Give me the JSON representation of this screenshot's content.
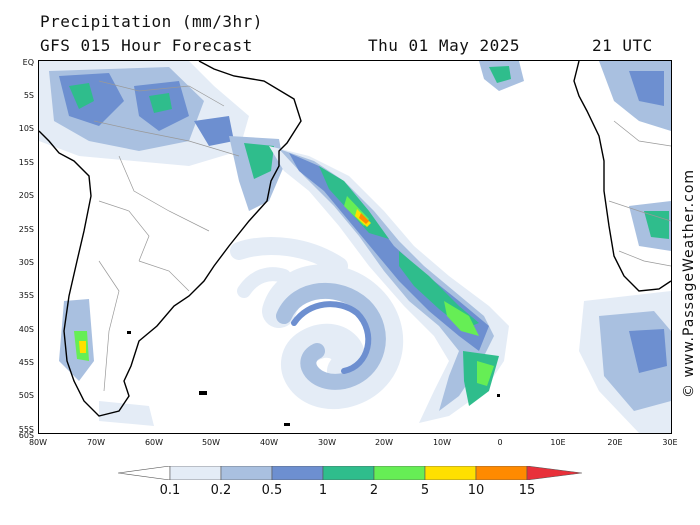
{
  "header": {
    "title": "Precipitation (mm/3hr)",
    "subtitle": "GFS 015 Hour Forecast",
    "date": "Thu 01 May 2025",
    "time": "21 UTC"
  },
  "credit": "© www.PassageWeather.com",
  "latitude_labels": [
    "EQ",
    "5S",
    "10S",
    "15S",
    "20S",
    "25S",
    "30S",
    "35S",
    "40S",
    "45S",
    "50S",
    "55S",
    "60S"
  ],
  "longitude_labels": [
    "80W",
    "70W",
    "60W",
    "50W",
    "40W",
    "30W",
    "20W",
    "10W",
    "0",
    "10E",
    "20E",
    "30E"
  ],
  "legend": {
    "ticks": [
      "0.1",
      "0.2",
      "0.5",
      "1",
      "2",
      "5",
      "10",
      "15"
    ],
    "colors": [
      "#ffffff",
      "#e4ecf6",
      "#a9c0e0",
      "#6d8fd0",
      "#2fbd8c",
      "#66ee55",
      "#ffe000",
      "#ff8a00",
      "#e8303a"
    ]
  },
  "map": {
    "land_color": "#ffffff",
    "coast_color": "#000000",
    "border_color": "#999999",
    "precip_colors": {
      "light": "#e4ecf6",
      "pale": "#a9c0e0",
      "moderate": "#6d8fd0",
      "heavy": "#2fbd8c",
      "heavier": "#66ee55",
      "intense": "#ffe000",
      "extreme": "#ff8a00",
      "max": "#e8303a"
    }
  }
}
